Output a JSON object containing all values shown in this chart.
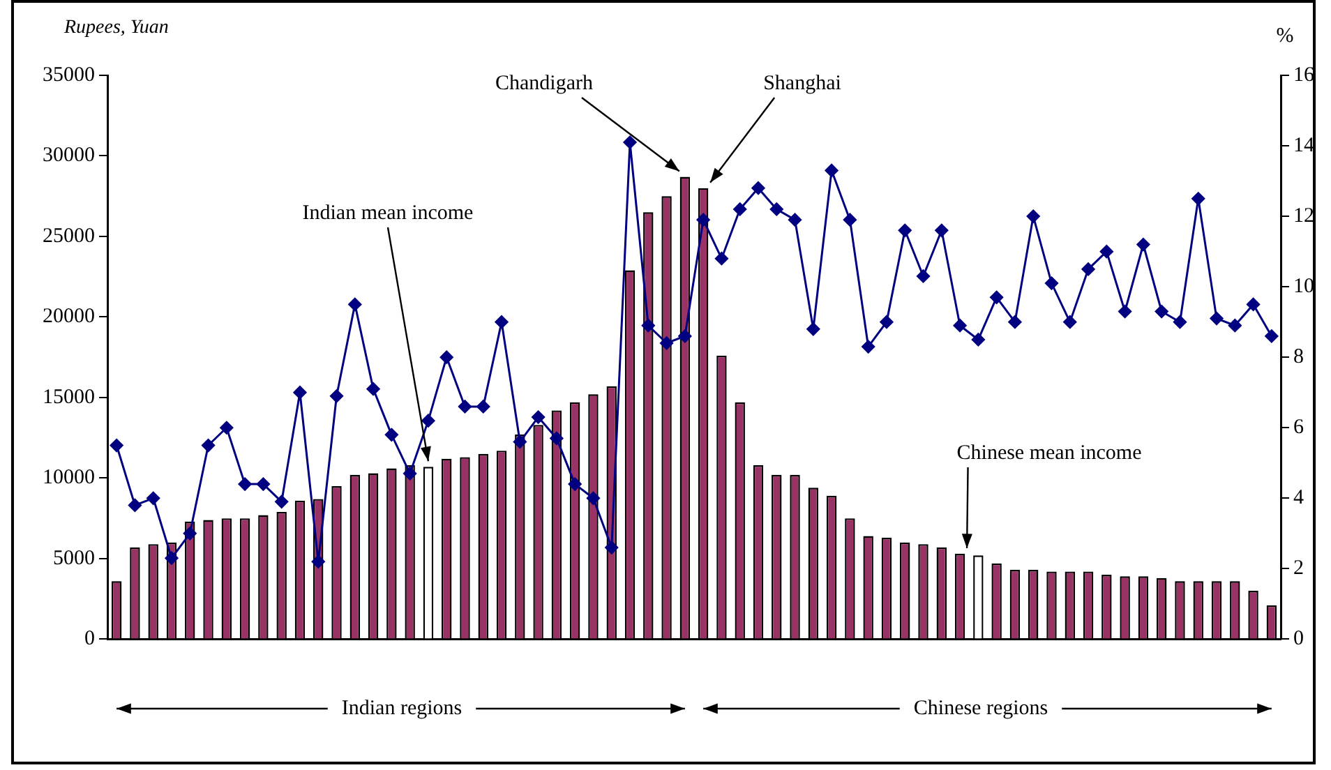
{
  "chart_data": {
    "type": "bar",
    "ylabel": "Rupees, Yuan",
    "y2label": "%",
    "categories": [
      null,
      null,
      null,
      null,
      null,
      null,
      null,
      null,
      null,
      null,
      null,
      null,
      null,
      null,
      null,
      null,
      null,
      null,
      null,
      null,
      null,
      null,
      null,
      null,
      null,
      null,
      null,
      null,
      null,
      null,
      null,
      null,
      null,
      null,
      null,
      null,
      null,
      null,
      null,
      null,
      null,
      null,
      null,
      null,
      null,
      null,
      null,
      null,
      null,
      null,
      null,
      null,
      null,
      null,
      null,
      null,
      null,
      null,
      null,
      null,
      null,
      null,
      null,
      null
    ],
    "series": [
      {
        "colors": [
          "#993366",
          "#993366",
          "#993366",
          "#993366",
          "#993366",
          "#993366",
          "#993366",
          "#993366",
          "#993366",
          "#993366",
          "#993366",
          "#993366",
          "#993366",
          "#993366",
          "#993366",
          "#993366",
          "#993366",
          "#ffffff",
          "#993366",
          "#993366",
          "#993366",
          "#993366",
          "#993366",
          "#993366",
          "#993366",
          "#993366",
          "#993366",
          "#993366",
          "#993366",
          "#993366",
          "#993366",
          "#993366",
          "#993366",
          "#993366",
          "#993366",
          "#993366",
          "#993366",
          "#993366",
          "#993366",
          "#993366",
          "#993366",
          "#993366",
          "#993366",
          "#993366",
          "#993366",
          "#993366",
          "#993366",
          "#ffffff",
          "#993366",
          "#993366",
          "#993366",
          "#993366",
          "#993366",
          "#993366",
          "#993366",
          "#993366",
          "#993366",
          "#993366",
          "#993366",
          "#993366",
          "#993366",
          "#993366",
          "#993366",
          "#993366"
        ],
        "values": [
          3600,
          5700,
          5900,
          6000,
          7300,
          7400,
          7500,
          7500,
          7700,
          7900,
          8600,
          8700,
          9500,
          10200,
          10300,
          10600,
          10800,
          10700,
          11200,
          11300,
          11500,
          11700,
          12700,
          13300,
          14200,
          14700,
          15200,
          15700,
          22900,
          26500,
          27500,
          28700,
          28000,
          17600,
          14700,
          10800,
          10200,
          10200,
          9400,
          8900,
          7500,
          6400,
          6300,
          6000,
          5900,
          5700,
          5300,
          5200,
          4700,
          4300,
          4300,
          4200,
          4200,
          4200,
          4000,
          3900,
          3900,
          3800,
          3600,
          3600,
          3600,
          3600,
          3000,
          2100
        ]
      },
      {
        "type": "line",
        "axis": "y2",
        "color": "#000080",
        "marker": "diamond",
        "values": [
          5.5,
          3.8,
          4.0,
          2.3,
          3.0,
          5.5,
          6.0,
          4.4,
          4.4,
          3.9,
          7.0,
          2.2,
          6.9,
          9.5,
          7.1,
          5.8,
          4.7,
          6.2,
          8.0,
          6.6,
          6.6,
          9.0,
          5.6,
          6.3,
          5.7,
          4.4,
          4.0,
          2.6,
          14.1,
          8.9,
          8.4,
          8.6,
          11.9,
          10.8,
          12.2,
          12.8,
          12.2,
          11.9,
          8.8,
          13.3,
          11.9,
          8.3,
          9.0,
          11.6,
          10.3,
          11.6,
          8.9,
          8.5,
          9.7,
          9.0,
          12.0,
          10.1,
          9.0,
          10.5,
          11.0,
          9.3,
          11.2,
          9.3,
          9.0,
          12.5,
          9.1,
          8.9,
          9.5,
          8.6
        ]
      }
    ],
    "ylim": [
      0,
      35000
    ],
    "yticks": [
      0,
      5000,
      10000,
      15000,
      20000,
      25000,
      30000,
      35000
    ],
    "y2lim": [
      0,
      16
    ],
    "y2ticks": [
      0,
      2,
      4,
      6,
      8,
      10,
      12,
      14,
      16
    ],
    "grid": false,
    "legend": false,
    "annotations": [
      "Indian mean income",
      "Chandigarh",
      "Shanghai",
      "Chinese mean income",
      "Indian regions",
      "Chinese regions"
    ]
  }
}
